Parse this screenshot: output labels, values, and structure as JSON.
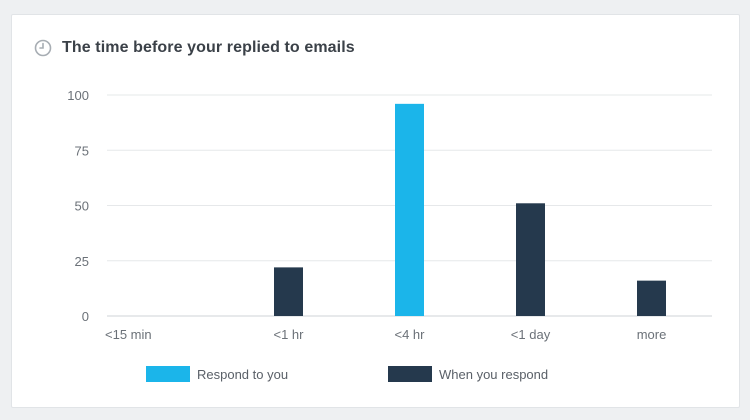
{
  "header": {
    "title": "The time before your replied to emails",
    "icon": "clock-icon"
  },
  "colors": {
    "respond_to_you": "#1bb5ea",
    "when_you_respond": "#25394d",
    "grid": "#e6e8ea",
    "axis": "#cfd3d7"
  },
  "chart_data": {
    "type": "bar",
    "title": "The time before your replied to emails",
    "categories": [
      "<15 min",
      "<1 hr",
      "<4 hr",
      "<1 day",
      "more"
    ],
    "series": [
      {
        "name": "Respond to you",
        "values": [
          0,
          0,
          96,
          0,
          0
        ]
      },
      {
        "name": "When you respond",
        "values": [
          0,
          22,
          0,
          51,
          16
        ]
      }
    ],
    "yticks": [
      "0",
      "25",
      "50",
      "75",
      "100"
    ],
    "ylim": [
      0,
      100
    ],
    "grid": true,
    "legend": "bottom"
  }
}
